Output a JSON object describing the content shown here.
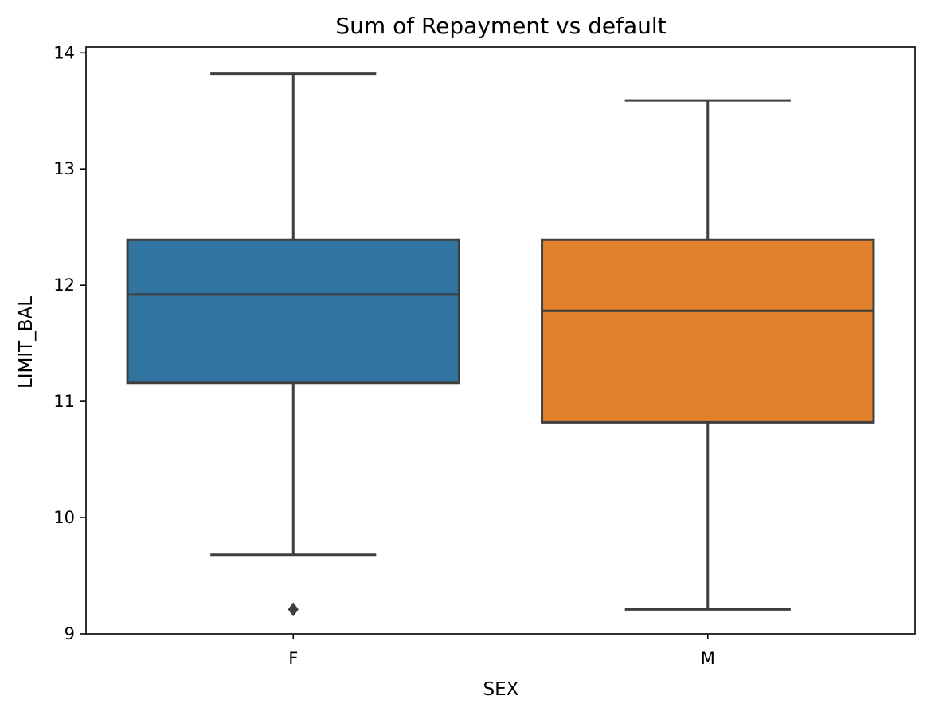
{
  "chart_data": {
    "type": "box",
    "title": "Sum of Repayment vs default",
    "xlabel": "SEX",
    "ylabel": "LIMIT_BAL",
    "categories": [
      "F",
      "M"
    ],
    "ylim": [
      9.0,
      14.05
    ],
    "yticks": [
      {
        "value": 9,
        "label": "9"
      },
      {
        "value": 10,
        "label": "10"
      },
      {
        "value": 11,
        "label": "11"
      },
      {
        "value": 12,
        "label": "12"
      },
      {
        "value": 13,
        "label": "13"
      },
      {
        "value": 14,
        "label": "14"
      }
    ],
    "grid": false,
    "legend": "none",
    "boxes": [
      {
        "category": "F",
        "whisker_low": 9.68,
        "q1": 11.16,
        "median": 11.92,
        "q3": 12.39,
        "whisker_high": 13.82,
        "outliers": [
          9.21
        ],
        "color": "#3274a1"
      },
      {
        "category": "M",
        "whisker_low": 9.21,
        "q1": 10.82,
        "median": 11.78,
        "q3": 12.39,
        "whisker_high": 13.59,
        "outliers": [],
        "color": "#e1812c"
      }
    ],
    "line_color": "#3f3f3f"
  }
}
